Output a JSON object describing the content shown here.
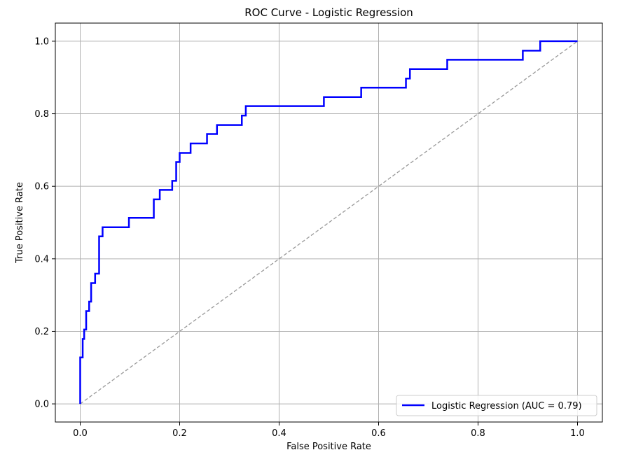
{
  "chart_data": {
    "type": "line",
    "title": "ROC Curve - Logistic Regression",
    "xlabel": "False Positive Rate",
    "ylabel": "True Positive Rate",
    "xlim": [
      -0.05,
      1.05
    ],
    "ylim": [
      -0.05,
      1.05
    ],
    "xticks": [
      0.0,
      0.2,
      0.4,
      0.6,
      0.8,
      1.0
    ],
    "yticks": [
      0.0,
      0.2,
      0.4,
      0.6,
      0.8,
      1.0
    ],
    "xtick_labels": [
      "0.0",
      "0.2",
      "0.4",
      "0.6",
      "0.8",
      "1.0"
    ],
    "ytick_labels": [
      "0.0",
      "0.2",
      "0.4",
      "0.6",
      "0.8",
      "1.0"
    ],
    "grid": true,
    "legend_position": "lower-right",
    "series": [
      {
        "name": "Logistic Regression (AUC = 0.79)",
        "color": "#0000ff",
        "style": "solid",
        "x": [
          0.0,
          0.0,
          0.005,
          0.005,
          0.008,
          0.008,
          0.012,
          0.012,
          0.018,
          0.018,
          0.022,
          0.022,
          0.03,
          0.03,
          0.038,
          0.038,
          0.045,
          0.045,
          0.098,
          0.098,
          0.148,
          0.148,
          0.16,
          0.16,
          0.185,
          0.185,
          0.193,
          0.193,
          0.2,
          0.2,
          0.222,
          0.222,
          0.255,
          0.255,
          0.275,
          0.275,
          0.325,
          0.325,
          0.333,
          0.333,
          0.49,
          0.49,
          0.565,
          0.565,
          0.655,
          0.655,
          0.663,
          0.663,
          0.738,
          0.738,
          0.89,
          0.89,
          0.925,
          0.925,
          1.0
        ],
        "y": [
          0.0,
          0.128,
          0.128,
          0.179,
          0.179,
          0.205,
          0.205,
          0.256,
          0.256,
          0.282,
          0.282,
          0.333,
          0.333,
          0.359,
          0.359,
          0.462,
          0.462,
          0.487,
          0.487,
          0.513,
          0.513,
          0.564,
          0.564,
          0.59,
          0.59,
          0.615,
          0.615,
          0.667,
          0.667,
          0.692,
          0.692,
          0.718,
          0.718,
          0.744,
          0.744,
          0.769,
          0.769,
          0.795,
          0.795,
          0.821,
          0.821,
          0.846,
          0.846,
          0.872,
          0.872,
          0.897,
          0.897,
          0.923,
          0.923,
          0.949,
          0.949,
          0.974,
          0.974,
          1.0,
          1.0
        ]
      },
      {
        "color": "#999999",
        "style": "dashed",
        "x": [
          0.0,
          1.0
        ],
        "y": [
          0.0,
          1.0
        ]
      }
    ]
  }
}
